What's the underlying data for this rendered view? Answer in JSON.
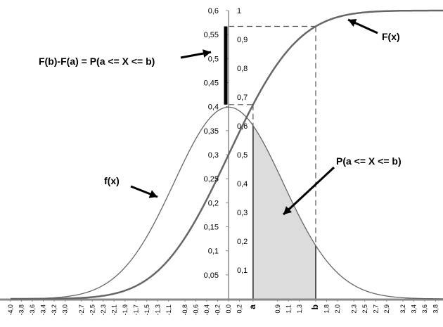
{
  "chart_data": {
    "type": "line",
    "title": "",
    "xlabel": "",
    "ylabel": "",
    "grid": false,
    "xlim": [
      -4.0,
      4.0
    ],
    "ylim_left": [
      0,
      0.6
    ],
    "ylim_right": [
      0,
      1
    ],
    "x_ticks": [
      "-4,0",
      "-3,8",
      "-3,6",
      "-3,4",
      "-3,2",
      "-3,0",
      "-2,7",
      "-2,5",
      "-2,3",
      "-2,1",
      "-1,9",
      "-1,7",
      "-1,5",
      "-1,3",
      "-1,1",
      "-0,8",
      "-0,6",
      "-0,4",
      "-0,2",
      "0,0",
      "0,2",
      "a",
      "0,9",
      "1,1",
      "1,3",
      "b",
      "1,8",
      "2,0",
      "2,3",
      "2,5",
      "2,7",
      "2,9",
      "3,2",
      "3,4",
      "3,6",
      "3,8"
    ],
    "x_tick_values": [
      -4.0,
      -3.8,
      -3.6,
      -3.4,
      -3.2,
      -3.0,
      -2.7,
      -2.5,
      -2.3,
      -2.1,
      -1.9,
      -1.7,
      -1.5,
      -1.3,
      -1.1,
      -0.8,
      -0.6,
      -0.4,
      -0.2,
      0.0,
      0.2,
      0.45,
      0.9,
      1.1,
      1.3,
      1.6,
      1.8,
      2.0,
      2.3,
      2.5,
      2.7,
      2.9,
      3.2,
      3.4,
      3.6,
      3.8
    ],
    "y_ticks_left": [
      "0,05",
      "0,1",
      "0,15",
      "0,2",
      "0,25",
      "0,3",
      "0,35",
      "0,4",
      "0,45",
      "0,5",
      "0,55",
      "0,6"
    ],
    "y_ticks_right": [
      "0,1",
      "0,2",
      "0,3",
      "0,4",
      "0,5",
      "0,6",
      "0,7",
      "0,8",
      "0,9",
      "1"
    ],
    "a": 0.45,
    "b": 1.6,
    "curves": [
      {
        "label": "f(x)",
        "function": "standard normal pdf",
        "axis": "left"
      },
      {
        "label": "F(x)",
        "function": "standard normal cdf",
        "axis": "right"
      }
    ],
    "annotations": {
      "cdf_label": "F(x)",
      "pdf_label": "f(x)",
      "difference_label": "F(b)-F(a) = P(a <= X <= b)",
      "area_label": "P(a <= X <= b)"
    }
  }
}
